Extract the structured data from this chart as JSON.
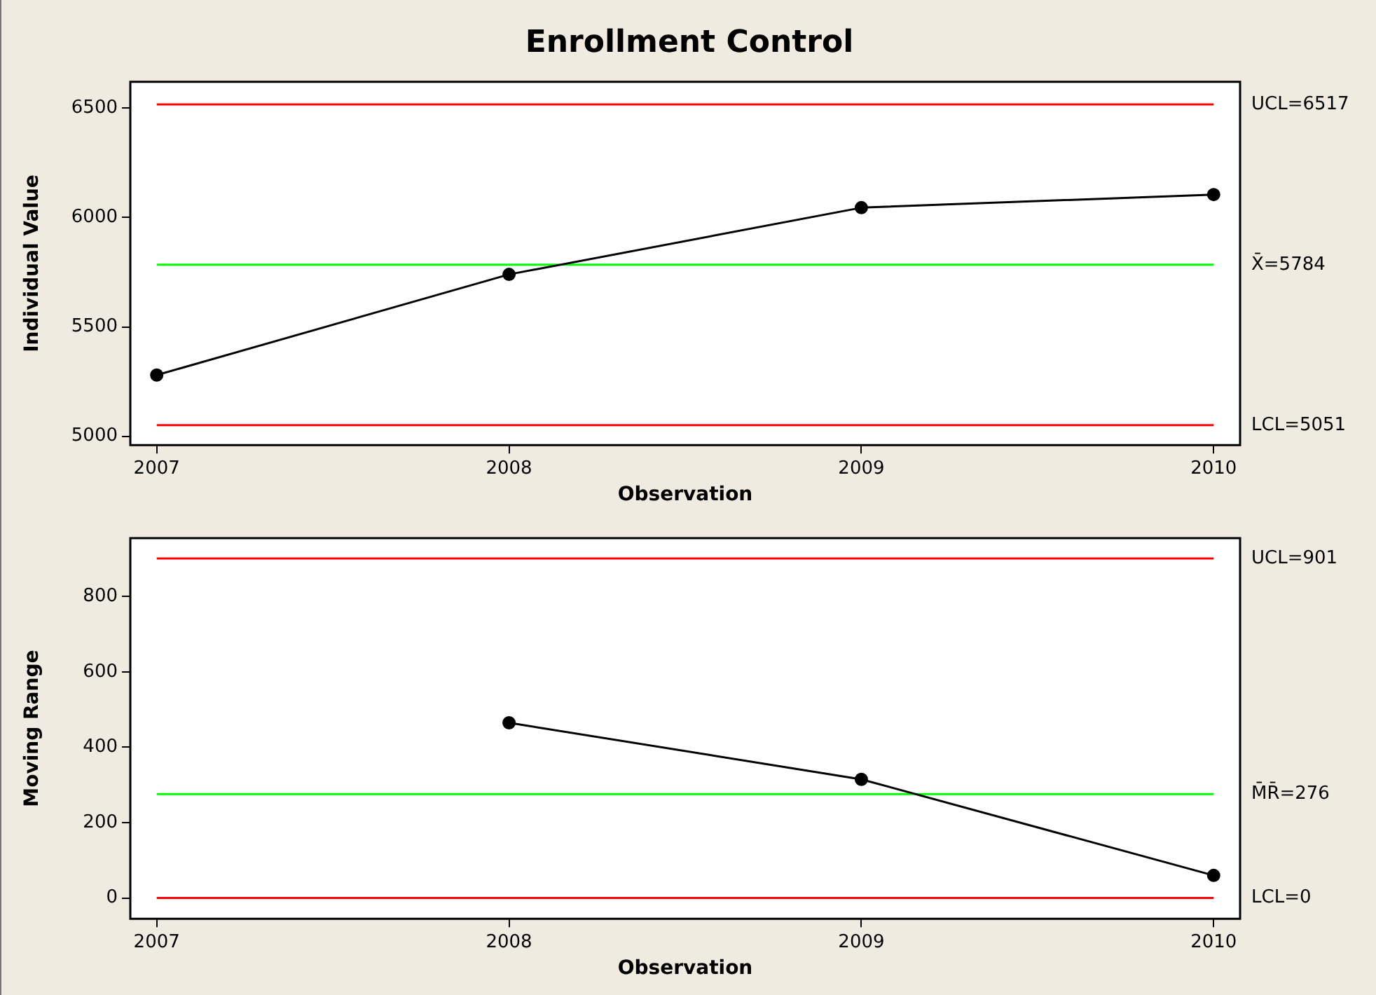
{
  "chart_data": [
    {
      "type": "line",
      "title": "Enrollment Control",
      "xlabel": "Observation",
      "ylabel": "Individual Value",
      "x": [
        2007,
        2008,
        2009,
        2010
      ],
      "series": [
        {
          "color": "#000000",
          "values": [
            5280,
            5740,
            6045,
            6105
          ]
        }
      ],
      "xlim": [
        2006.925,
        2010.075
      ],
      "xticks": [
        2007,
        2008,
        2009,
        2010
      ],
      "ylim": [
        4960,
        6620
      ],
      "yticks": [
        5000,
        5500,
        6000,
        6500
      ],
      "ref_lines": [
        {
          "axis": "y",
          "value": 6517,
          "label": "UCL=6517",
          "color": "#ff0000"
        },
        {
          "axis": "y",
          "value": 5784,
          "label": "X̄=5784",
          "color": "#00ff00"
        },
        {
          "axis": "y",
          "value": 5051,
          "label": "LCL=5051",
          "color": "#ff0000"
        }
      ],
      "marker": "circle",
      "grid": false,
      "legend": false
    },
    {
      "type": "line",
      "xlabel": "Observation",
      "ylabel": "Moving Range",
      "series": [
        {
          "color": "#000000",
          "x": [
            2008,
            2009,
            2010
          ],
          "values": [
            465,
            315,
            60
          ]
        }
      ],
      "xlim": [
        2006.925,
        2010.075
      ],
      "xticks": [
        2007,
        2008,
        2009,
        2010
      ],
      "ylim": [
        -55,
        955
      ],
      "yticks": [
        0,
        200,
        400,
        600,
        800
      ],
      "ref_lines": [
        {
          "axis": "y",
          "value": 901,
          "label": "UCL=901",
          "color": "#ff0000"
        },
        {
          "axis": "y",
          "value": 276,
          "label": "M̄R̄=276",
          "color": "#00ff00"
        },
        {
          "axis": "y",
          "value": 0,
          "label": "LCL=0",
          "color": "#ff0000"
        }
      ],
      "marker": "circle",
      "grid": false,
      "legend": false
    }
  ]
}
